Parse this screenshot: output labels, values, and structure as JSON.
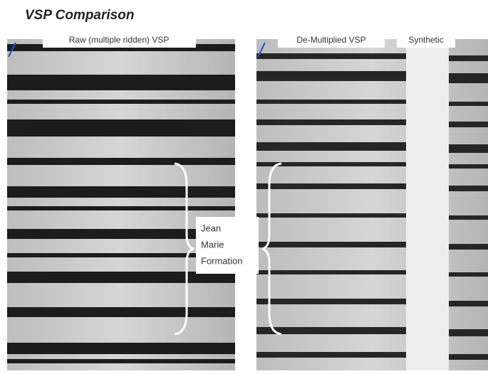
{
  "header": {
    "title": "VSP Comparison"
  },
  "panels": [
    {
      "label": "Raw (multiple ridden) VSP"
    },
    {
      "label": "De-Multiplied VSP"
    }
  ],
  "synthetic_label": "Synthetic",
  "annotation": {
    "lines": [
      "Jean",
      "Marie",
      "Formation"
    ]
  }
}
